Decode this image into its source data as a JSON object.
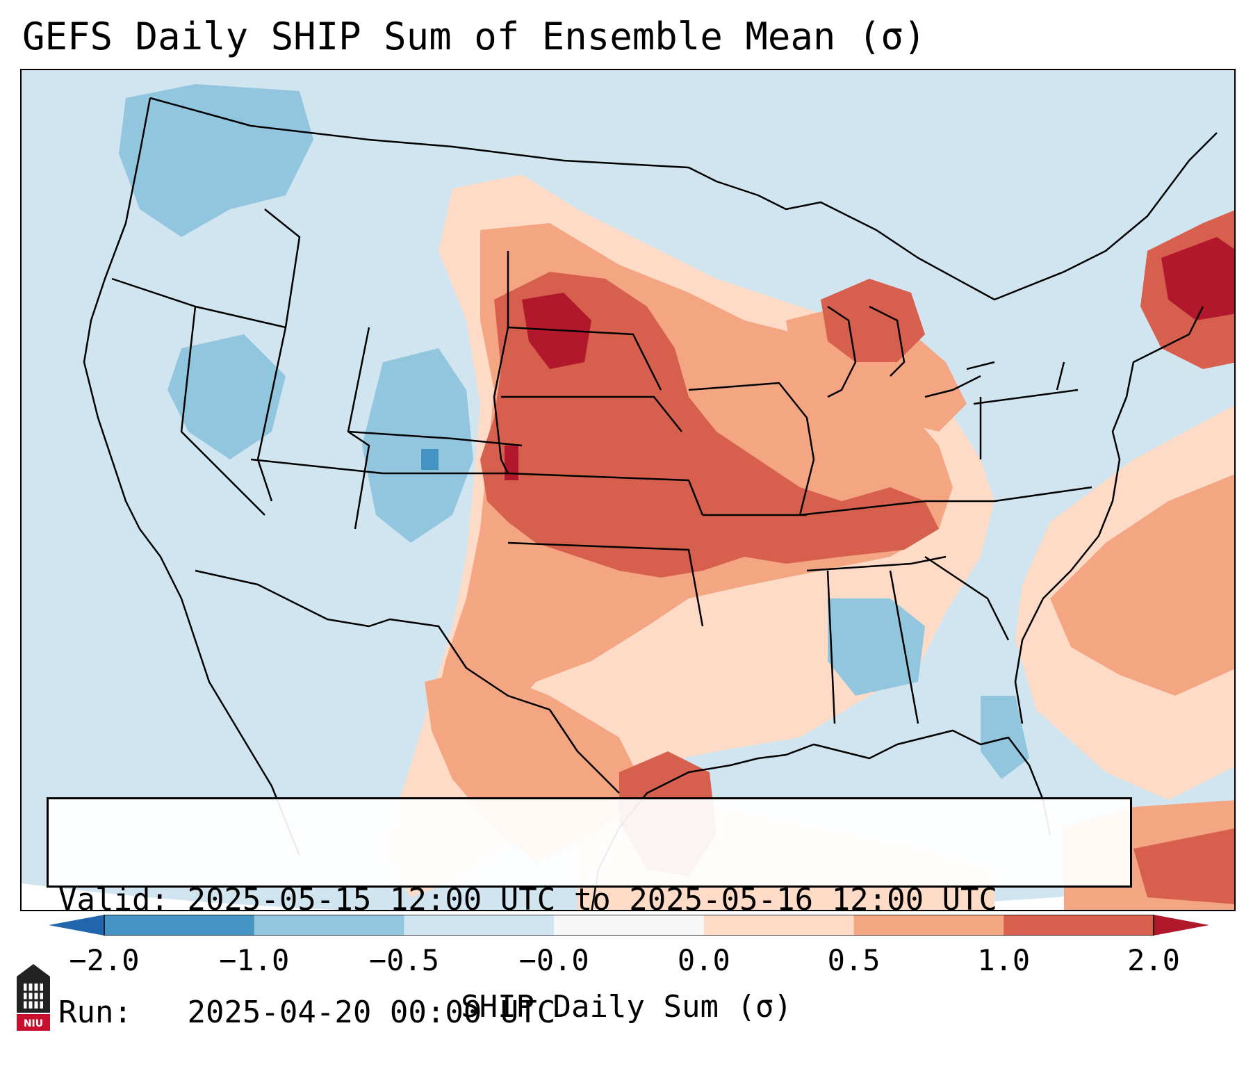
{
  "title": "GEFS Daily SHIP Sum of Ensemble Mean (σ)",
  "info_box": {
    "valid_label": "Valid:",
    "valid_value": "2025-05-15 12:00 UTC to 2025-05-16 12:00 UTC",
    "run_label": "Run:",
    "run_value": "2025-04-20 00:00 UTC"
  },
  "colorbar": {
    "label": "SHIP Daily Sum (σ)",
    "tick_labels": [
      "−2.0",
      "−1.0",
      "−0.5",
      "−0.0",
      "0.0",
      "0.5",
      "1.0",
      "2.0"
    ],
    "bins": [
      {
        "from": -2.0,
        "to": -1.0,
        "color": "#4393c3"
      },
      {
        "from": -1.0,
        "to": -0.5,
        "color": "#92c5de"
      },
      {
        "from": -0.5,
        "to": -0.0,
        "color": "#d1e5f0"
      },
      {
        "from": -0.0,
        "to": 0.0,
        "color": "#f7f7f7"
      },
      {
        "from": 0.0,
        "to": 0.5,
        "color": "#fddbc7"
      },
      {
        "from": 0.5,
        "to": 1.0,
        "color": "#f4a582"
      },
      {
        "from": 1.0,
        "to": 2.0,
        "color": "#d6604d"
      }
    ],
    "under_color": "#2166ac",
    "over_color": "#b2182b"
  },
  "map": {
    "region": "Contiguous United States, southern Canada, northern Mexico, Caribbean",
    "background_color": "#d1e5f0",
    "outline_color": "#000000"
  },
  "logo": {
    "text": "NIU",
    "color": "#c8102e"
  }
}
